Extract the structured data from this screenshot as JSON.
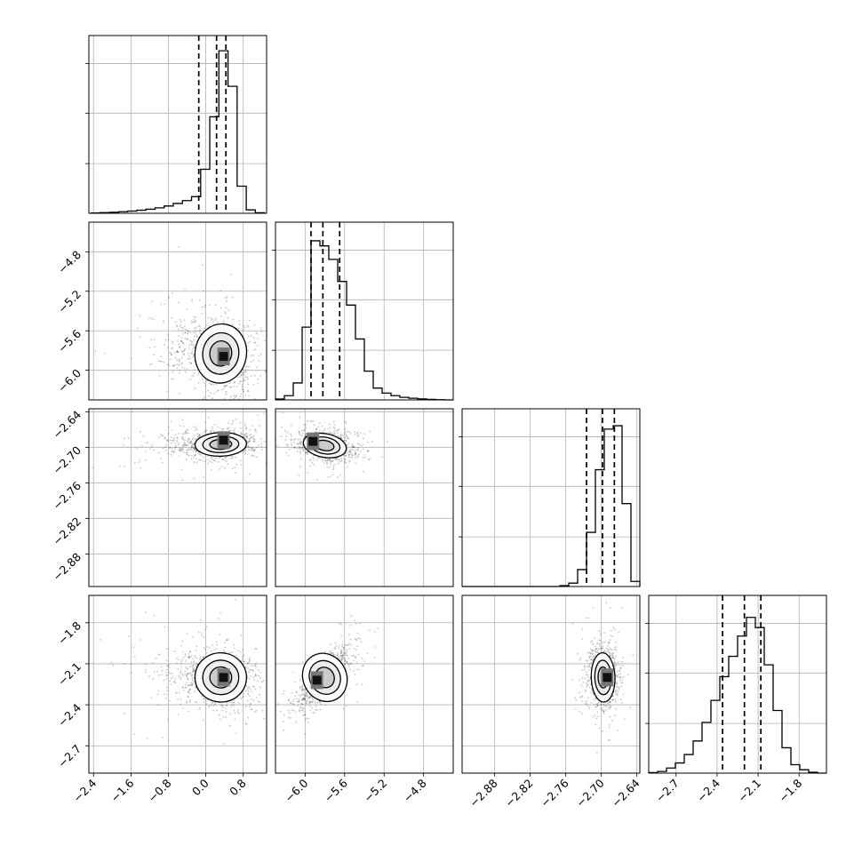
{
  "chart_data": {
    "type": "corner",
    "title": "",
    "n_params": 4,
    "params": [
      {
        "range": [
          -2.5,
          1.3
        ],
        "ticks": [
          "−2.4",
          "−1.6",
          "−0.8",
          "0.0",
          "0.8"
        ],
        "tick_values": [
          -2.4,
          -1.6,
          -0.8,
          0.0,
          0.8
        ]
      },
      {
        "range": [
          -6.3,
          -4.5
        ],
        "ticks": [
          "−6.0",
          "−5.6",
          "−5.2",
          "−4.8"
        ],
        "tick_values": [
          -6.0,
          -5.6,
          -5.2,
          -4.8
        ]
      },
      {
        "range": [
          -2.935,
          -2.635
        ],
        "ticks": [
          "−2.88",
          "−2.82",
          "−2.76",
          "−2.70",
          "−2.64"
        ],
        "tick_values": [
          -2.88,
          -2.82,
          -2.76,
          -2.7,
          -2.64
        ]
      },
      {
        "range": [
          -2.9,
          -1.6
        ],
        "ticks": [
          "−2.7",
          "−2.4",
          "−2.1",
          "−1.8"
        ],
        "tick_values": [
          -2.7,
          -2.4,
          -2.1,
          -1.8
        ]
      }
    ],
    "histograms": [
      {
        "param": 0,
        "edges": [
          -2.45,
          -2.255,
          -2.06,
          -1.865,
          -1.67,
          -1.475,
          -1.28,
          -1.085,
          -0.89,
          -0.695,
          -0.5,
          -0.305,
          -0.11,
          0.085,
          0.28,
          0.475,
          0.67,
          0.865,
          1.06,
          1.255
        ],
        "counts": [
          0.2,
          0.4,
          0.6,
          0.9,
          1.3,
          1.8,
          2.4,
          3.2,
          4.3,
          5.8,
          7.5,
          9.8,
          26,
          57,
          96,
          75,
          16,
          2,
          0.3
        ],
        "quantiles": [
          -0.15,
          0.23,
          0.43
        ],
        "ylim": [
          0,
          105
        ]
      },
      {
        "param": 1,
        "edges": [
          -6.3,
          -6.21,
          -6.12,
          -6.03,
          -5.94,
          -5.85,
          -5.76,
          -5.67,
          -5.58,
          -5.49,
          -5.4,
          -5.31,
          -5.22,
          -5.13,
          -5.04,
          -4.95,
          -4.86,
          -4.77,
          -4.68,
          -4.59,
          -4.5
        ],
        "counts": [
          0.5,
          2.5,
          10,
          43,
          94,
          91,
          83,
          70,
          56,
          36,
          17,
          7,
          4,
          2.5,
          1.5,
          1,
          0.6,
          0.3,
          0.1,
          0
        ],
        "quantiles": [
          -5.94,
          -5.82,
          -5.65
        ],
        "ylim": [
          0,
          105
        ]
      },
      {
        "param": 2,
        "edges": [
          -2.935,
          -2.92,
          -2.905,
          -2.89,
          -2.875,
          -2.86,
          -2.845,
          -2.83,
          -2.815,
          -2.8,
          -2.785,
          -2.77,
          -2.755,
          -2.74,
          -2.725,
          -2.71,
          -2.695,
          -2.68,
          -2.665,
          -2.65,
          -2.635
        ],
        "counts": [
          0,
          0,
          0,
          0,
          0,
          0,
          0,
          0,
          0,
          0,
          0,
          0.5,
          2,
          10,
          32,
          69,
          93,
          95,
          49,
          3
        ],
        "quantiles": [
          -2.725,
          -2.698,
          -2.678
        ],
        "ylim": [
          0,
          105
        ]
      },
      {
        "param": 3,
        "edges": [
          -2.9,
          -2.835,
          -2.77,
          -2.705,
          -2.64,
          -2.575,
          -2.51,
          -2.445,
          -2.38,
          -2.315,
          -2.25,
          -2.185,
          -2.12,
          -2.055,
          -1.99,
          -1.925,
          -1.86,
          -1.795,
          -1.73,
          -1.665,
          -1.6
        ],
        "counts": [
          0.3,
          1,
          3,
          6,
          11,
          19,
          30,
          43,
          57,
          69,
          81,
          92,
          86,
          64,
          37,
          15,
          5,
          2,
          0.5,
          0
        ],
        "quantiles": [
          -2.36,
          -2.2,
          -2.08
        ],
        "ylim": [
          0,
          105
        ]
      }
    ],
    "joint_panels": [
      {
        "x": 0,
        "y": 1,
        "center": [
          0.32,
          -5.83
        ],
        "spread": [
          0.55,
          0.3
        ],
        "corr": -0.25,
        "mode": [
          0.38,
          -5.86
        ]
      },
      {
        "x": 0,
        "y": 2,
        "center": [
          0.32,
          -2.695
        ],
        "spread": [
          0.55,
          0.02
        ],
        "corr": 0.05,
        "mode": [
          0.38,
          -2.688
        ]
      },
      {
        "x": 1,
        "y": 2,
        "center": [
          -5.8,
          -2.697
        ],
        "spread": [
          0.22,
          0.02
        ],
        "corr": -0.3,
        "mode": [
          -5.92,
          -2.69
        ]
      },
      {
        "x": 0,
        "y": 3,
        "center": [
          0.32,
          -2.2
        ],
        "spread": [
          0.55,
          0.18
        ],
        "corr": -0.1,
        "mode": [
          0.38,
          -2.2
        ]
      },
      {
        "x": 1,
        "y": 3,
        "center": [
          -5.8,
          -2.2
        ],
        "spread": [
          0.22,
          0.18
        ],
        "corr": 0.75,
        "mode": [
          -5.88,
          -2.22
        ]
      },
      {
        "x": 2,
        "y": 3,
        "center": [
          -2.697,
          -2.2
        ],
        "spread": [
          0.02,
          0.18
        ],
        "corr": 0.05,
        "mode": [
          -2.69,
          -2.2
        ]
      }
    ],
    "colors": {
      "axis": "#000000",
      "grid": "#b0b0b0",
      "points": "#000000"
    }
  }
}
